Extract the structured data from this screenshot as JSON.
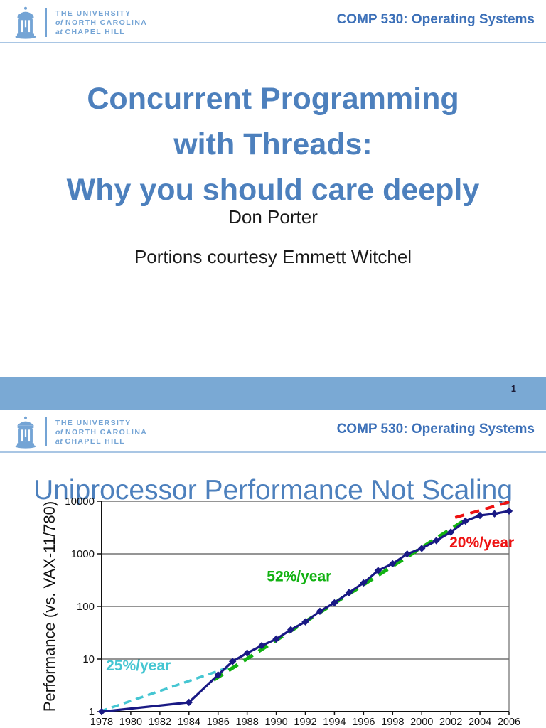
{
  "header": {
    "logo": "unc-old-well",
    "university_lines": [
      {
        "pre": "",
        "text": "THE UNIVERSITY"
      },
      {
        "pre": "of ",
        "text": "NORTH CAROLINA"
      },
      {
        "pre": "at ",
        "text": "CHAPEL HILL"
      }
    ],
    "course": "COMP 530: Operating Systems"
  },
  "slide1": {
    "title_lines": [
      "Concurrent Programming",
      "with Threads:",
      "Why you should care deeply"
    ],
    "author": "Don Porter",
    "credit": "Portions courtesy Emmett Witchel",
    "page_number": "1"
  },
  "slide2": {
    "title": "Uniprocessor Performance Not Scaling"
  },
  "colors": {
    "title_blue": "#4d80bd",
    "course_blue": "#3c70b8",
    "header_light_blue": "#74a4d5",
    "rule_blue": "#a9c6e4",
    "footer_bar_blue": "#7aa9d4",
    "series_navy": "#191984",
    "trend_cyan": "#45c6d2",
    "trend_green": "#12b212",
    "trend_red": "#ee1212"
  },
  "chart_data": {
    "type": "line",
    "title": "",
    "xlabel": "",
    "ylabel": "Performance (vs. VAX-11/780)",
    "y_scale": "log",
    "grid": "horizontal",
    "legend": "none",
    "xlim": [
      1978,
      2006
    ],
    "ylim": [
      1,
      10000
    ],
    "x_ticks": [
      1978,
      1980,
      1982,
      1984,
      1986,
      1988,
      1990,
      1992,
      1994,
      1996,
      1998,
      2000,
      2002,
      2004,
      2006
    ],
    "y_ticks": [
      1,
      10,
      100,
      1000,
      10000
    ],
    "series": [
      {
        "name": "uniprocessor-performance",
        "color": "#191984",
        "marker": "diamond",
        "x": [
          1978,
          1984,
          1986,
          1987,
          1988,
          1989,
          1990,
          1991,
          1992,
          1993,
          1994,
          1995,
          1996,
          1997,
          1998,
          1999,
          2000,
          2001,
          2002,
          2003,
          2004,
          2005,
          2006
        ],
        "y": [
          1,
          1.5,
          5,
          9,
          13,
          18,
          24,
          36,
          51,
          81,
          117,
          183,
          280,
          481,
          649,
          993,
          1267,
          1779,
          2584,
          4195,
          5364,
          5764,
          6505
        ]
      }
    ],
    "trend_lines": [
      {
        "name": "25-percent-per-year",
        "label": "25%/year",
        "color": "#45c6d2",
        "x": [
          1977.85,
          1986.7
        ],
        "y": [
          1.0,
          6.9
        ],
        "layer": "under",
        "dash": [
          11,
          7
        ],
        "width": 3.5
      },
      {
        "name": "52-percent-per-year",
        "label": "52%/year",
        "color": "#12b212",
        "x": [
          1985.7,
          2003.2
        ],
        "y": [
          4.0,
          4800
        ],
        "layer": "under",
        "dash": [
          15,
          10
        ],
        "width": 5
      },
      {
        "name": "20-percent-per-year",
        "label": "20%/year",
        "color": "#ee1212",
        "x": [
          2002.3,
          2006.1
        ],
        "y": [
          4900,
          9800
        ],
        "layer": "over",
        "dash": [
          13,
          9
        ],
        "width": 4
      }
    ],
    "annotations": [
      {
        "text": "25%/year",
        "color": "#45c6d2",
        "x": 1978.3,
        "y": 6.05
      },
      {
        "text": "52%/year",
        "color": "#12b212",
        "x": 1989.35,
        "y": 300
      },
      {
        "text": "20%/year",
        "color": "#ee1212",
        "x": 2001.9,
        "y": 1330
      }
    ]
  }
}
